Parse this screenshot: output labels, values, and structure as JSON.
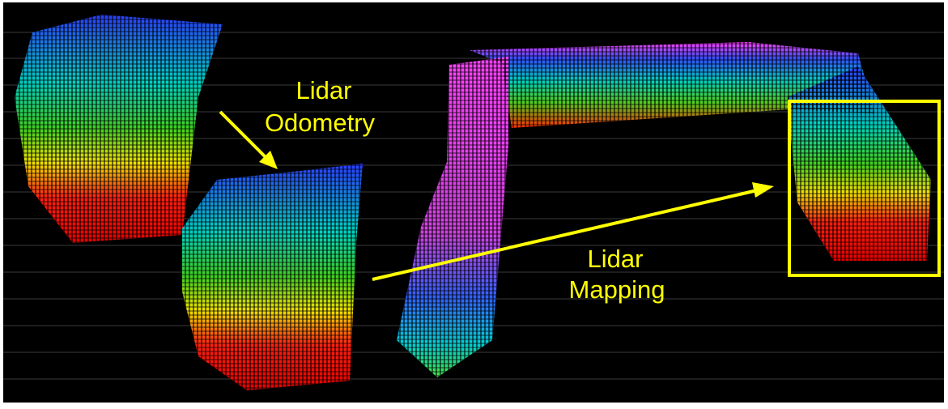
{
  "annotations": [
    {
      "lines": [
        "Lidar",
        "Odometry"
      ]
    },
    {
      "lines": [
        "Lidar",
        "Mapping"
      ]
    }
  ]
}
